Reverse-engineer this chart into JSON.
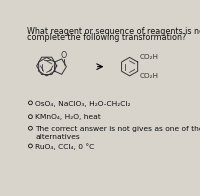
{
  "title_line1": "What reagent or sequence of reagents is needed to",
  "title_line2": "complete the following transformation?",
  "options": [
    "OsO₄, NaClO₃, H₂O-CH₂Cl₂",
    "KMnO₄, H₂O, heat",
    "The correct answer is not gives as one of the other\nalternatives",
    "RuO₄, CCl₄, 0 °C"
  ],
  "bg_color": "#d8d4cc",
  "text_color": "#111111",
  "mol_color": "#333333",
  "font_size_title": 5.8,
  "font_size_options": 5.4,
  "font_size_mol": 5.2
}
